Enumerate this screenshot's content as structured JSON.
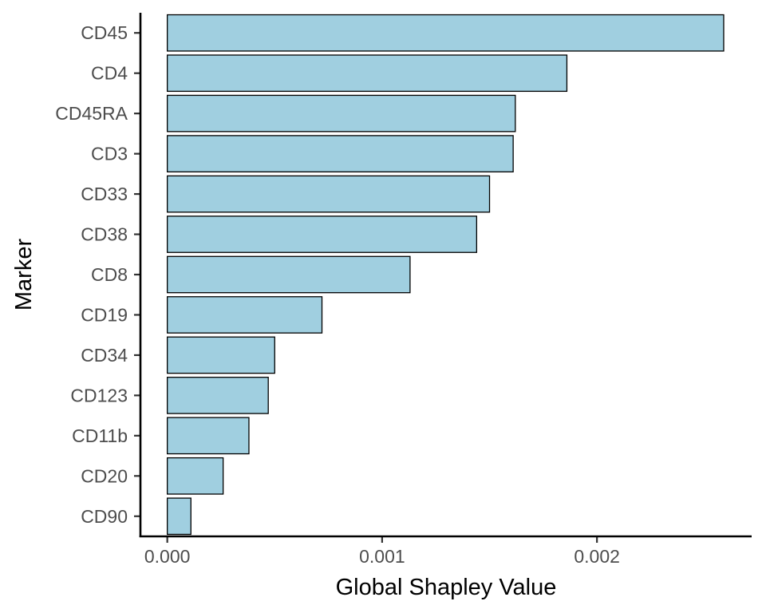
{
  "chart_data": {
    "type": "bar",
    "orientation": "horizontal",
    "xlabel": "Global Shapley Value",
    "ylabel": "Marker",
    "xlim": [
      -0.000125,
      0.00272
    ],
    "x_ticks": [
      {
        "value": 0.0,
        "label": "0.000"
      },
      {
        "value": 0.001,
        "label": "0.001"
      },
      {
        "value": 0.002,
        "label": "0.002"
      }
    ],
    "categories": [
      "CD45",
      "CD4",
      "CD45RA",
      "CD3",
      "CD33",
      "CD38",
      "CD8",
      "CD19",
      "CD34",
      "CD123",
      "CD11b",
      "CD20",
      "CD90"
    ],
    "values": [
      0.00259,
      0.00186,
      0.00162,
      0.00161,
      0.0015,
      0.00144,
      0.00113,
      0.00072,
      0.0005,
      0.00047,
      0.00038,
      0.00026,
      0.00011
    ],
    "bar_color": "#a0cfe0",
    "bar_border_color": "#000000",
    "grid": false,
    "legend": "none"
  }
}
